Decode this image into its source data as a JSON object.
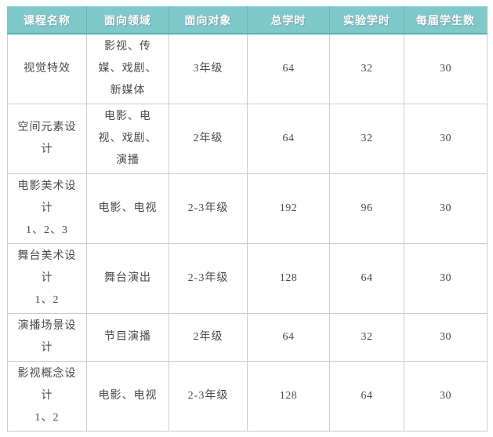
{
  "table": {
    "headers": [
      "课程名称",
      "面向领域",
      "面向对象",
      "总学时",
      "实验学时",
      "每届学生数"
    ],
    "rows": [
      {
        "name_lines": [
          "视觉特效"
        ],
        "field": "影视、传媒、戏剧、新媒体",
        "target": "3年级",
        "total_hours": "64",
        "lab_hours": "32",
        "students": "30"
      },
      {
        "name_lines": [
          "空间元素设计"
        ],
        "field": "电影、电视、戏剧、演播",
        "target": "2年级",
        "total_hours": "64",
        "lab_hours": "32",
        "students": "30"
      },
      {
        "name_lines": [
          "电影美术设计",
          "1、2、3"
        ],
        "field": "电影、电视",
        "target": "2-3年级",
        "total_hours": "192",
        "lab_hours": "96",
        "students": "30"
      },
      {
        "name_lines": [
          "舞台美术设计",
          "1、2"
        ],
        "field": "舞台演出",
        "target": "2-3年级",
        "total_hours": "128",
        "lab_hours": "64",
        "students": "30"
      },
      {
        "name_lines": [
          "演播场景设计"
        ],
        "field": "节目演播",
        "target": "2年级",
        "total_hours": "64",
        "lab_hours": "32",
        "students": "30"
      },
      {
        "name_lines": [
          "影视概念设计",
          "1、2"
        ],
        "field": "电影、电视",
        "target": "2-3年级",
        "total_hours": "128",
        "lab_hours": "64",
        "students": "30"
      }
    ]
  },
  "colors": {
    "header_bg": "#7fc9cb",
    "header_divider": "#68b6b9",
    "header_underline": "#5bb3b1",
    "body_border": "#cccccc",
    "body_text": "#4a4a4a",
    "header_text": "#ffffff",
    "page_bg": "#ffffff"
  }
}
